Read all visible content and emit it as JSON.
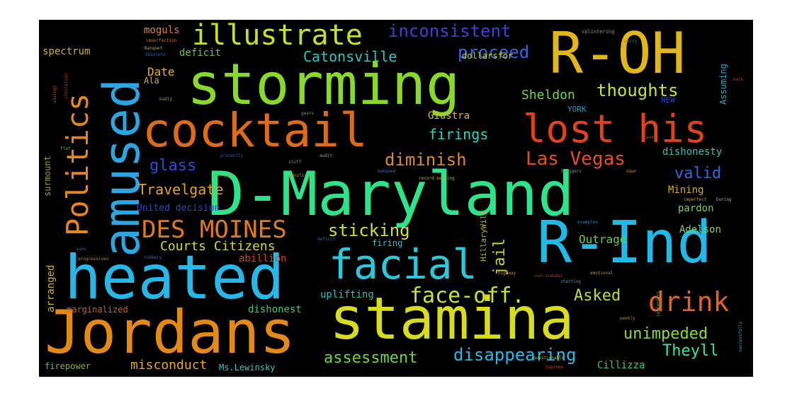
{
  "words": [
    {
      "text": "D-Maryland",
      "color": "#2fe38a",
      "vertical": false
    },
    {
      "text": "storming",
      "color": "#8ad92a",
      "vertical": false
    },
    {
      "text": "stamina",
      "color": "#d7dc1e",
      "vertical": false
    },
    {
      "text": "heated",
      "color": "#28b8e8",
      "vertical": false
    },
    {
      "text": "Jordans",
      "color": "#e38a16",
      "vertical": false
    },
    {
      "text": "R-Ind",
      "color": "#22b9e6",
      "vertical": false
    },
    {
      "text": "R-OH",
      "color": "#e1b61b",
      "vertical": false
    },
    {
      "text": "cocktail",
      "color": "#e06b17",
      "vertical": false
    },
    {
      "text": "amused",
      "color": "#2aa7e3",
      "vertical": true
    },
    {
      "text": "lost his",
      "color": "#e2421b",
      "vertical": false
    },
    {
      "text": "facial",
      "color": "#2ec8db",
      "vertical": false
    },
    {
      "text": "illustrate",
      "color": "#c8e02a",
      "vertical": false
    },
    {
      "text": "Politics",
      "color": "#e6861d",
      "vertical": true
    },
    {
      "text": "DES MOINES",
      "color": "#e07a1a",
      "vertical": false
    },
    {
      "text": "drink",
      "color": "#e3641c",
      "vertical": false
    },
    {
      "text": "face-off.",
      "color": "#cde22a",
      "vertical": false
    },
    {
      "text": "inconsistent",
      "color": "#4b3bd8",
      "vertical": false
    },
    {
      "text": "Las Vegas",
      "color": "#e4511a",
      "vertical": false
    },
    {
      "text": "diminish",
      "color": "#e0892a",
      "vertical": false
    },
    {
      "text": "proceed",
      "color": "#3a63dd",
      "vertical": false
    },
    {
      "text": "thoughts",
      "color": "#c8e22e",
      "vertical": false
    },
    {
      "text": "sticking",
      "color": "#d8df30",
      "vertical": false
    },
    {
      "text": "disappearing",
      "color": "#29b9e6",
      "vertical": false
    },
    {
      "text": "assessment",
      "color": "#6bd93a",
      "vertical": false
    },
    {
      "text": "unimpeded",
      "color": "#8bdb34",
      "vertical": false
    },
    {
      "text": "Asked",
      "color": "#bde02b",
      "vertical": false
    },
    {
      "text": "Catonsville",
      "color": "#2dc7c0",
      "vertical": false
    },
    {
      "text": "Travelgate",
      "color": "#e0a322",
      "vertical": false
    },
    {
      "text": "Courts Citizens",
      "color": "#d2d92a",
      "vertical": false
    },
    {
      "text": "glass",
      "color": "#2f4ed8",
      "vertical": false
    },
    {
      "text": "valid",
      "color": "#2b6be2",
      "vertical": false
    },
    {
      "text": "firings",
      "color": "#2ed3bd",
      "vertical": false
    },
    {
      "text": "Theyll",
      "color": "#39e0b0",
      "vertical": false
    },
    {
      "text": "misconduct",
      "color": "#e5a727",
      "vertical": false
    },
    {
      "text": "Sheldon",
      "color": "#6cd84a",
      "vertical": false
    },
    {
      "text": "jail",
      "color": "#c9d32a",
      "vertical": true
    },
    {
      "text": "Date",
      "color": "#e3b62a",
      "vertical": false
    },
    {
      "text": "Outrage",
      "color": "#60d24a",
      "vertical": false
    },
    {
      "text": "Adelson",
      "color": "#7ad56a",
      "vertical": false
    },
    {
      "text": "pardon",
      "color": "#8bc845",
      "vertical": false
    },
    {
      "text": "dishonesty",
      "color": "#38c2b2",
      "vertical": false
    },
    {
      "text": "Mining",
      "color": "#d6a832",
      "vertical": false
    },
    {
      "text": "Giustra",
      "color": "#d9bb35",
      "vertical": false
    },
    {
      "text": "uplifting",
      "color": "#2fbdb4",
      "vertical": false
    },
    {
      "text": "dishonest",
      "color": "#3ec67b",
      "vertical": false
    },
    {
      "text": "Cillizza",
      "color": "#35ca8a",
      "vertical": false
    },
    {
      "text": "Ms.Lewinsky",
      "color": "#37c9c4",
      "vertical": false
    },
    {
      "text": "United decision",
      "color": "#3442c9",
      "vertical": false
    },
    {
      "text": "abillion",
      "color": "#d8451e",
      "vertical": false
    },
    {
      "text": "arranged",
      "color": "#d0b42d",
      "vertical": true
    },
    {
      "text": "firing",
      "color": "#2ec2c0",
      "vertical": false
    },
    {
      "text": "marginalized",
      "color": "#c4632a",
      "vertical": false
    },
    {
      "text": "firepower",
      "color": "#7ab52e",
      "vertical": false
    },
    {
      "text": "spectrum",
      "color": "#c9b039",
      "vertical": false
    },
    {
      "text": "moguls",
      "color": "#d28645",
      "vertical": false
    },
    {
      "text": "deficit",
      "color": "#74c33a",
      "vertical": false
    },
    {
      "text": "Ala",
      "color": "#d8aa3a",
      "vertical": false
    },
    {
      "text": "dollarsfor",
      "color": "#c5d239",
      "vertical": false
    },
    {
      "text": "YORK",
      "color": "#2c9bbd",
      "vertical": false
    },
    {
      "text": "NEW",
      "color": "#2942c3",
      "vertical": false
    },
    {
      "text": "Assuming",
      "color": "#3aa7c8",
      "vertical": true
    },
    {
      "text": "surmount",
      "color": "#9a9c2c",
      "vertical": true
    },
    {
      "text": "HillaryWill",
      "color": "#b7b52a",
      "vertical": true
    },
    {
      "text": "splintering",
      "color": "#8f8f8f",
      "vertical": false
    },
    {
      "text": "imperfection",
      "color": "#c8782a",
      "vertical": false
    },
    {
      "text": "Banquet",
      "color": "#c0aa2c",
      "vertical": false
    },
    {
      "text": "Obsolete",
      "color": "#2e63a8",
      "vertical": false
    },
    {
      "text": "badly",
      "color": "#7fae3a",
      "vertical": false
    },
    {
      "text": "gears",
      "color": "#6ea341",
      "vertical": false
    },
    {
      "text": "travel",
      "color": "#b44f2a",
      "vertical": false
    },
    {
      "text": "back",
      "color": "#b83b2a",
      "vertical": false
    },
    {
      "text": "flat",
      "color": "#76b036",
      "vertical": false
    },
    {
      "text": "presently",
      "color": "#3b53b1",
      "vertical": false
    },
    {
      "text": "audit",
      "color": "#a9a93c",
      "vertical": false
    },
    {
      "text": "stuff",
      "color": "#5fa95c",
      "vertical": false
    },
    {
      "text": "off-year",
      "color": "#8aa537",
      "vertical": false
    },
    {
      "text": "hanzlirug",
      "color": "#b1a13d",
      "vertical": false
    },
    {
      "text": "behaved",
      "color": "#3f72b3",
      "vertical": false
    },
    {
      "text": "record-keeping",
      "color": "#a6b136",
      "vertical": false
    },
    {
      "text": "bloggers",
      "color": "#5c9b94",
      "vertical": false
    },
    {
      "text": "dawn",
      "color": "#c27a3c",
      "vertical": false
    },
    {
      "text": "imperfect",
      "color": "#b8a742",
      "vertical": false
    },
    {
      "text": "During",
      "color": "#a8b440",
      "vertical": false
    },
    {
      "text": "examples",
      "color": "#3b7abf",
      "vertical": false
    },
    {
      "text": "emotional",
      "color": "#b79c3a",
      "vertical": false
    },
    {
      "text": "non-scandal",
      "color": "#b03f2f",
      "vertical": false
    },
    {
      "text": "starting",
      "color": "#4e91c0",
      "vertical": false
    },
    {
      "text": "highway",
      "color": "#b99438",
      "vertical": false
    },
    {
      "text": "sums",
      "color": "#3b58b0",
      "vertical": false
    },
    {
      "text": "robbery",
      "color": "#3a6bbd",
      "vertical": false
    },
    {
      "text": "progressives",
      "color": "#b2933d",
      "vertical": false
    },
    {
      "text": "deficit",
      "color": "#3d67aa",
      "vertical": false
    },
    {
      "text": "questionable",
      "color": "#b5a93b",
      "vertical": false
    },
    {
      "text": "Supreme",
      "color": "#b64028",
      "vertical": false
    },
    {
      "text": "contenders",
      "color": "#9aa63d",
      "vertical": true
    },
    {
      "text": "successfully",
      "color": "#3aa2a0",
      "vertical": true
    },
    {
      "text": "weekly",
      "color": "#a48b3b",
      "vertical": false
    },
    {
      "text": "analogy",
      "color": "#b0422b",
      "vertical": true
    },
    {
      "text": "invitation",
      "color": "#a63b2b",
      "vertical": true
    },
    {
      "text": "carry",
      "color": "#4a6c9d",
      "vertical": false
    }
  ]
}
